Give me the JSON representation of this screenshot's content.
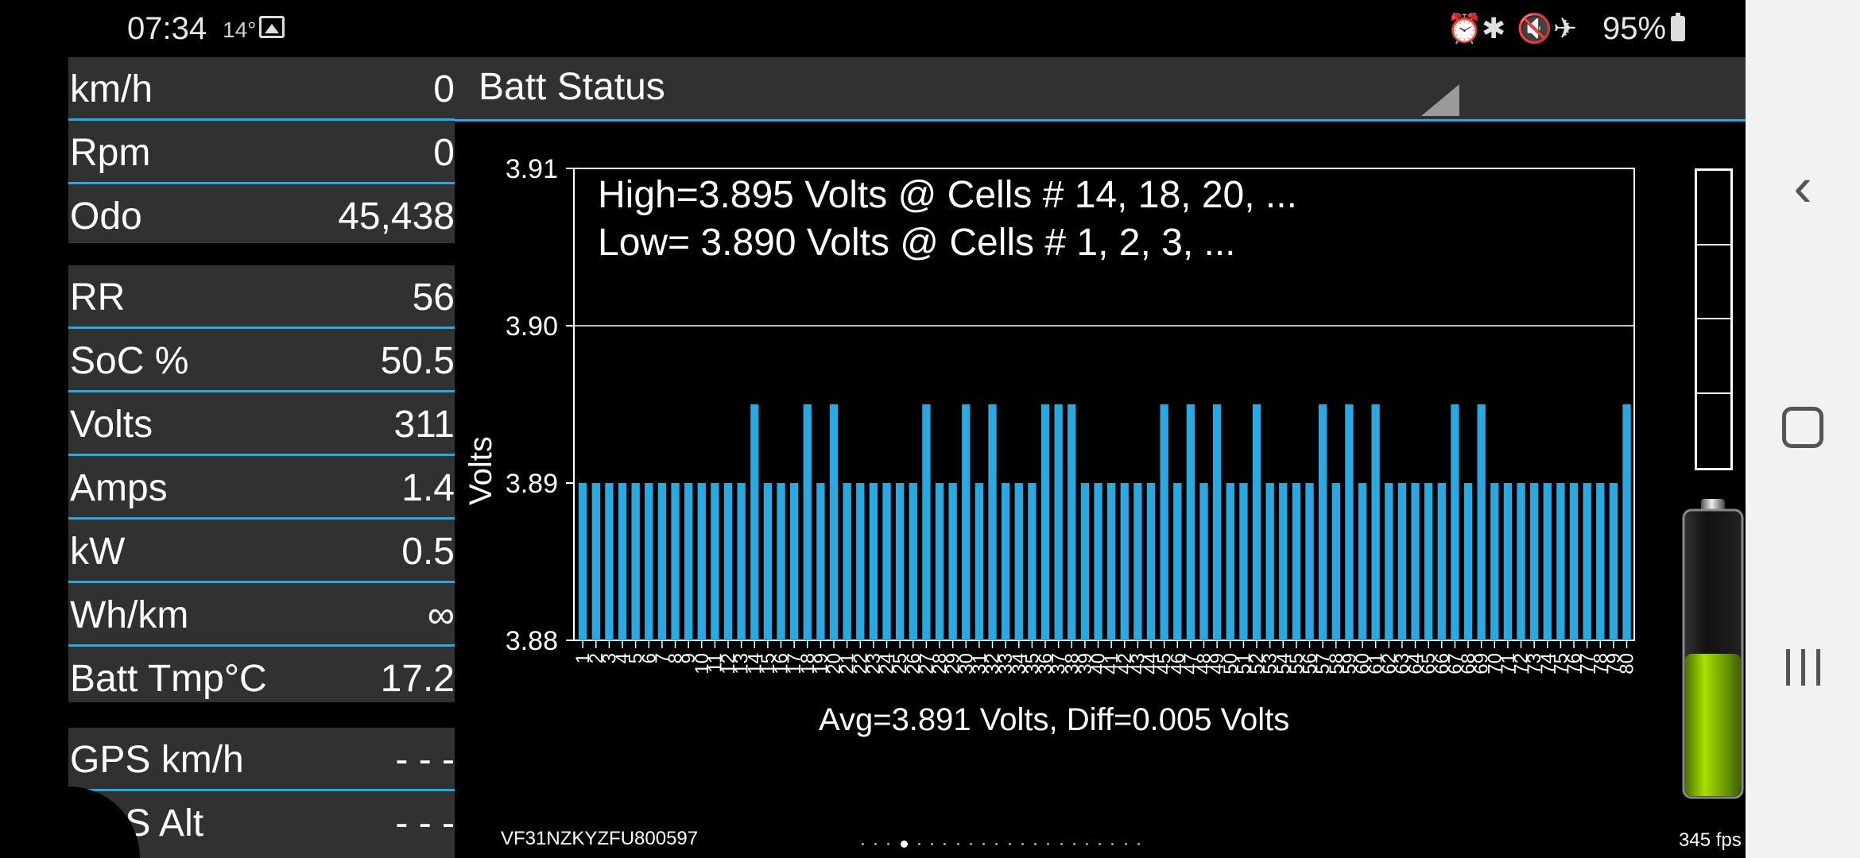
{
  "status_bar": {
    "time": "07:34",
    "temperature": "14°",
    "battery_percent": "95%",
    "icons": [
      "gallery-icon",
      "alarm-icon",
      "bluetooth-icon",
      "mute-icon",
      "airplane-icon",
      "battery-icon"
    ]
  },
  "left_panel": {
    "group1": [
      {
        "label": "km/h",
        "value": "0"
      },
      {
        "label": "Rpm",
        "value": "0"
      },
      {
        "label": "Odo",
        "value": "45,438"
      }
    ],
    "group2": [
      {
        "label": "RR",
        "value": "56"
      },
      {
        "label": "SoC %",
        "value": "50.5"
      },
      {
        "label": "Volts",
        "value": "311"
      },
      {
        "label": "Amps",
        "value": "1.4"
      },
      {
        "label": "kW",
        "value": "0.5"
      },
      {
        "label": "Wh/km",
        "value": "∞"
      },
      {
        "label": "Batt Tmp°C",
        "value": "17.2"
      }
    ],
    "group3": [
      {
        "label": "GPS km/h",
        "value": "- - -"
      },
      {
        "label": "GPS Alt",
        "value": "- - -"
      }
    ]
  },
  "header": {
    "title": "Batt Status"
  },
  "chart_data": {
    "type": "bar",
    "title_line1": "High=3.895 Volts @ Cells # 14, 18, 20,  ...",
    "title_line2": "Low= 3.890 Volts @ Cells # 1, 2, 3,  ...",
    "ylabel": "Volts",
    "xlabel": "Avg=3.891 Volts, Diff=0.005 Volts",
    "ylim": [
      3.88,
      3.91
    ],
    "yticks": [
      "3.91",
      "3.90",
      "3.89",
      "3.88"
    ],
    "grid_lines": [
      3.9
    ],
    "categories": [
      "1",
      "2",
      "3",
      "4",
      "5",
      "6",
      "7",
      "8",
      "9",
      "10",
      "11",
      "12",
      "13",
      "14",
      "15",
      "16",
      "17",
      "18",
      "19",
      "20",
      "21",
      "22",
      "23",
      "24",
      "25",
      "26",
      "27",
      "28",
      "29",
      "30",
      "31",
      "32",
      "33",
      "34",
      "35",
      "36",
      "37",
      "38",
      "39",
      "40",
      "41",
      "42",
      "43",
      "44",
      "45",
      "46",
      "47",
      "48",
      "49",
      "50",
      "51",
      "52",
      "53",
      "54",
      "55",
      "56",
      "57",
      "58",
      "59",
      "60",
      "61",
      "62",
      "63",
      "64",
      "65",
      "66",
      "67",
      "68",
      "69",
      "70",
      "71",
      "72",
      "73",
      "74",
      "75",
      "76",
      "77",
      "78",
      "79",
      "80"
    ],
    "values": [
      3.89,
      3.89,
      3.89,
      3.89,
      3.89,
      3.89,
      3.89,
      3.89,
      3.89,
      3.89,
      3.89,
      3.89,
      3.89,
      3.895,
      3.89,
      3.89,
      3.89,
      3.895,
      3.89,
      3.895,
      3.89,
      3.89,
      3.89,
      3.89,
      3.89,
      3.89,
      3.895,
      3.89,
      3.89,
      3.895,
      3.89,
      3.895,
      3.89,
      3.89,
      3.89,
      3.895,
      3.895,
      3.895,
      3.89,
      3.89,
      3.89,
      3.89,
      3.89,
      3.89,
      3.895,
      3.89,
      3.895,
      3.89,
      3.895,
      3.89,
      3.89,
      3.895,
      3.89,
      3.89,
      3.89,
      3.89,
      3.895,
      3.89,
      3.895,
      3.89,
      3.895,
      3.89,
      3.89,
      3.89,
      3.89,
      3.89,
      3.895,
      3.89,
      3.895,
      3.89,
      3.89,
      3.89,
      3.89,
      3.89,
      3.89,
      3.89,
      3.89,
      3.89,
      3.89,
      3.895
    ],
    "bar_color": "#29a9e1"
  },
  "level_meter": {
    "segments": 4
  },
  "battery_graphic": {
    "fill_fraction": 0.5,
    "color": "#7fb800"
  },
  "vin": "VF31NZKYZFU800597",
  "fps": "345 fps",
  "pager": {
    "count": 22,
    "active": 3
  },
  "nav_bar": {
    "icons": [
      "back-icon",
      "home-icon",
      "recents-icon"
    ]
  }
}
